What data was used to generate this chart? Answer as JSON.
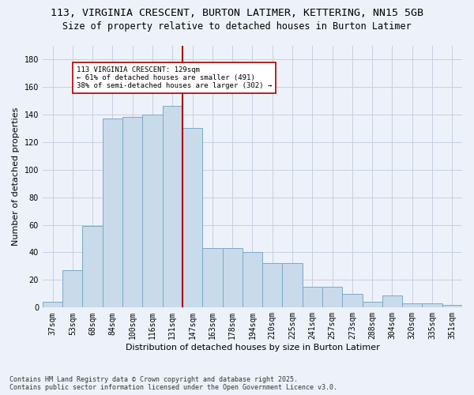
{
  "title1": "113, VIRGINIA CRESCENT, BURTON LATIMER, KETTERING, NN15 5GB",
  "title2": "Size of property relative to detached houses in Burton Latimer",
  "xlabel": "Distribution of detached houses by size in Burton Latimer",
  "ylabel": "Number of detached properties",
  "categories": [
    "37sqm",
    "53sqm",
    "68sqm",
    "84sqm",
    "100sqm",
    "116sqm",
    "131sqm",
    "147sqm",
    "163sqm",
    "178sqm",
    "194sqm",
    "210sqm",
    "225sqm",
    "241sqm",
    "257sqm",
    "273sqm",
    "288sqm",
    "304sqm",
    "320sqm",
    "335sqm",
    "351sqm"
  ],
  "values": [
    4,
    27,
    59,
    137,
    138,
    140,
    146,
    130,
    43,
    43,
    40,
    32,
    32,
    15,
    15,
    10,
    4,
    9,
    3,
    3,
    2
  ],
  "bar_color": "#c9daea",
  "bar_edge_color": "#7aaac8",
  "vline_x_index": 6,
  "vline_color": "#aa0000",
  "annotation_text": "113 VIRGINIA CRESCENT: 129sqm\n← 61% of detached houses are smaller (491)\n38% of semi-detached houses are larger (302) →",
  "annotation_box_color": "#ffffff",
  "annotation_box_edge": "#aa0000",
  "ylim": [
    0,
    190
  ],
  "yticks": [
    0,
    20,
    40,
    60,
    80,
    100,
    120,
    140,
    160,
    180
  ],
  "footer": "Contains HM Land Registry data © Crown copyright and database right 2025.\nContains public sector information licensed under the Open Government Licence v3.0.",
  "bg_color": "#edf2fa",
  "grid_color": "#c5cfe0",
  "title_fontsize": 9.5,
  "subtitle_fontsize": 8.5,
  "axis_label_fontsize": 8,
  "tick_fontsize": 7,
  "footer_fontsize": 6
}
